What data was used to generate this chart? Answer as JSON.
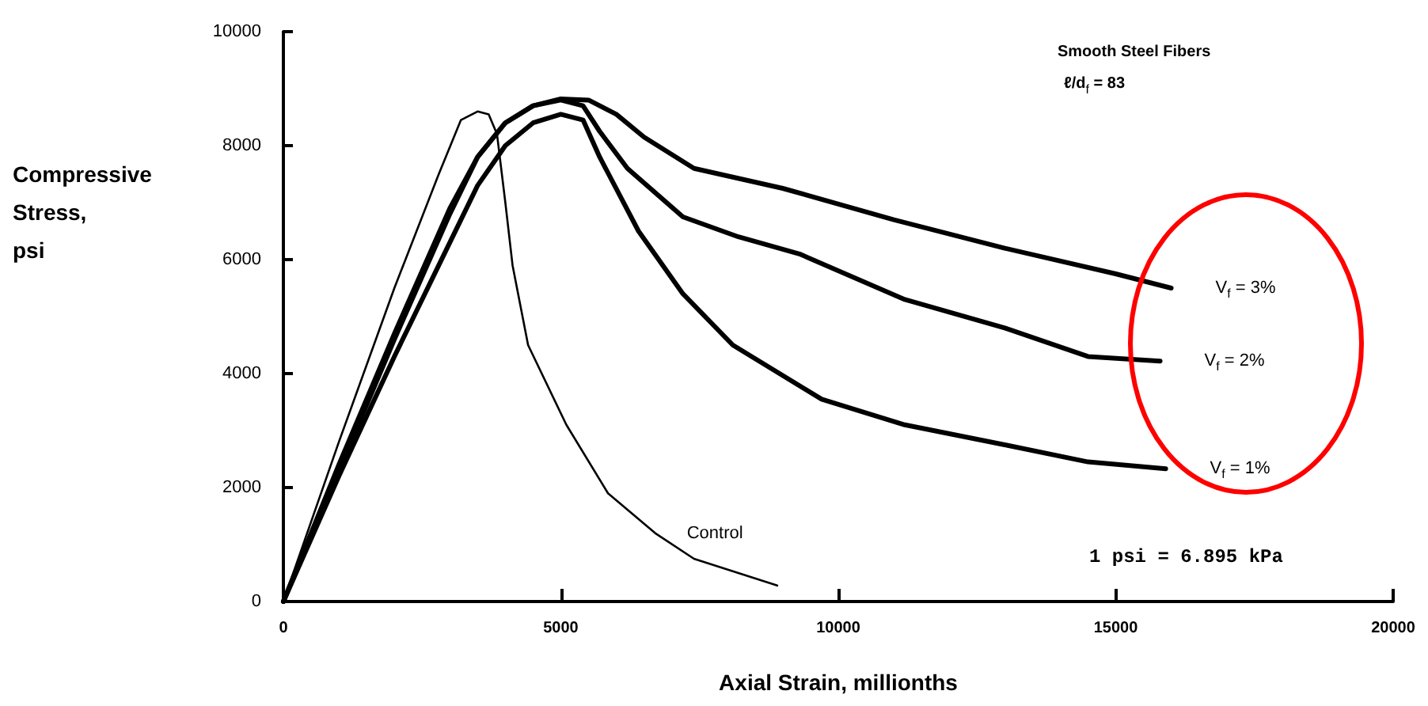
{
  "chart_data": {
    "type": "line",
    "xlabel": "Axial Strain, millionths",
    "ylabel": "Compressive Stress, psi",
    "xlim": [
      0,
      20000
    ],
    "xticks": [
      0,
      5000,
      10000,
      15000,
      20000
    ],
    "ylim": [
      0,
      10000
    ],
    "yticks": [
      0,
      2000,
      4000,
      6000,
      8000,
      10000
    ],
    "grid": false,
    "legend": false,
    "marker": "none",
    "line_style": "solid",
    "annotations": [
      "Smooth Steel Fibers",
      "ℓ/d$_{f}$ = 83",
      "1 psi = 6.895 kPa"
    ],
    "series": [
      {
        "name": "V$_{f}$ = 3%",
        "color": "#000000",
        "x": [
          0,
          1000,
          2000,
          3000,
          3500,
          4000,
          4500,
          5000,
          5500,
          6000,
          6500,
          7400,
          9000,
          11000,
          13000,
          15000,
          16000
        ],
        "values": [
          0,
          2300,
          4600,
          6800,
          7800,
          8400,
          8700,
          8820,
          8800,
          8550,
          8150,
          7600,
          7250,
          6700,
          6200,
          5750,
          5500
        ]
      },
      {
        "name": "V$_{f}$ = 2%",
        "color": "#000000",
        "x": [
          0,
          1000,
          2000,
          3000,
          3500,
          4000,
          4500,
          5000,
          5400,
          5700,
          6200,
          7200,
          8200,
          9300,
          11200,
          13000,
          14500,
          15800
        ],
        "values": [
          0,
          2400,
          4700,
          6900,
          7800,
          8400,
          8700,
          8800,
          8700,
          8250,
          7600,
          6750,
          6400,
          6100,
          5300,
          4800,
          4300,
          4220
        ]
      },
      {
        "name": "V$_{f}$ = 1%",
        "color": "#000000",
        "x": [
          0,
          1000,
          2000,
          3000,
          3500,
          4000,
          4500,
          5000,
          5400,
          5700,
          6400,
          7200,
          8100,
          9700,
          11200,
          13000,
          14500,
          15900
        ],
        "values": [
          0,
          2200,
          4300,
          6300,
          7300,
          8000,
          8400,
          8550,
          8450,
          7800,
          6500,
          5400,
          4500,
          3550,
          3100,
          2750,
          2450,
          2330
        ]
      },
      {
        "name": "Control",
        "color": "#000000",
        "x": [
          0,
          1000,
          2000,
          2800,
          3200,
          3500,
          3700,
          3850,
          4000,
          4130,
          4410,
          5100,
          5850,
          6700,
          7400,
          8900
        ],
        "values": [
          0,
          2800,
          5500,
          7500,
          8450,
          8600,
          8550,
          8200,
          7000,
          5900,
          4500,
          3100,
          1900,
          1200,
          750,
          280
        ]
      }
    ]
  }
}
